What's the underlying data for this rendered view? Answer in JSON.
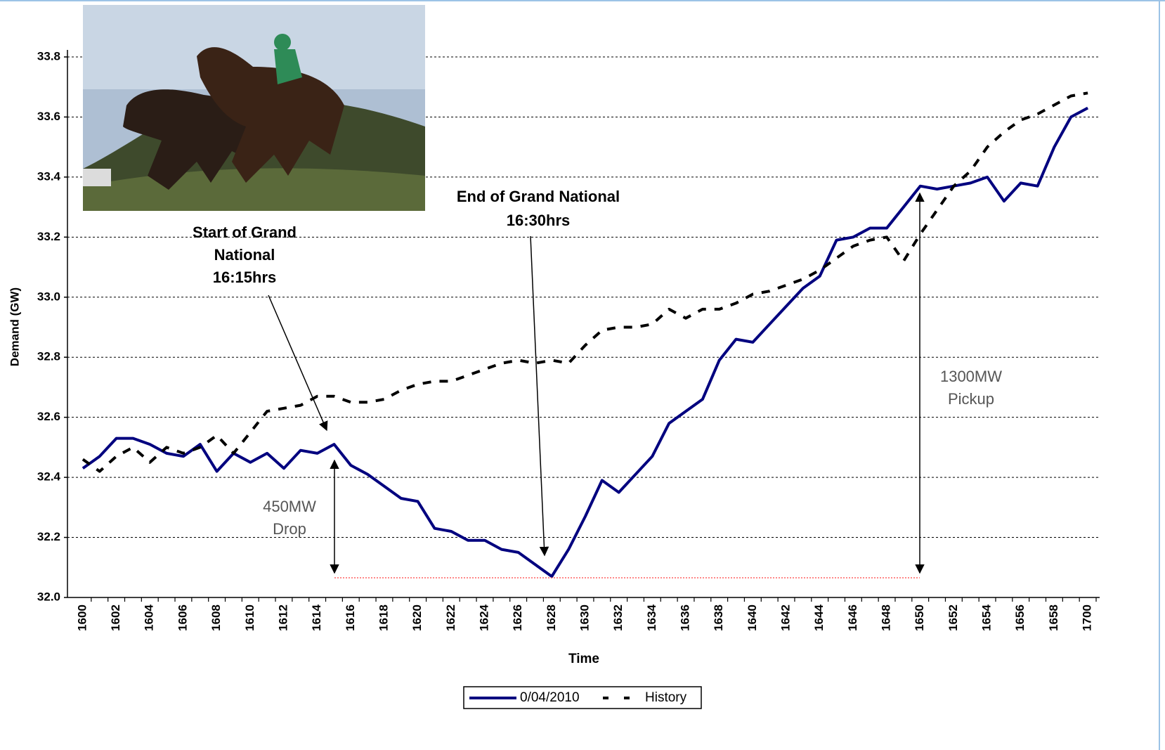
{
  "chart_data": {
    "type": "line",
    "x_label": "Time",
    "y_label": "Demand (GW)",
    "categories": [
      "1600",
      null,
      "1602",
      null,
      "1604",
      null,
      "1606",
      null,
      "1608",
      null,
      "1610",
      null,
      "1612",
      null,
      "1614",
      null,
      "1616",
      null,
      "1618",
      null,
      "1620",
      null,
      "1622",
      null,
      "1624",
      null,
      "1626",
      null,
      "1628",
      null,
      "1630",
      null,
      "1632",
      null,
      "1634",
      null,
      "1636",
      null,
      "1638",
      null,
      "1640",
      null,
      "1642",
      null,
      "1644",
      null,
      "1646",
      null,
      "1648",
      null,
      "1650",
      null,
      "1652",
      null,
      "1654",
      null,
      "1656",
      null,
      "1658",
      null,
      "1700"
    ],
    "series": [
      {
        "name": "0/04/2010",
        "color": "#00007f",
        "dashed": false,
        "values": [
          32.43,
          32.47,
          32.53,
          32.53,
          32.51,
          32.48,
          32.47,
          32.51,
          32.42,
          32.48,
          32.45,
          32.48,
          32.43,
          32.49,
          32.48,
          32.51,
          32.44,
          32.41,
          32.37,
          32.33,
          32.32,
          32.23,
          32.22,
          32.19,
          32.19,
          32.16,
          32.15,
          32.11,
          32.07,
          32.16,
          32.27,
          32.39,
          32.35,
          32.41,
          32.47,
          32.58,
          32.62,
          32.66,
          32.79,
          32.86,
          32.85,
          32.91,
          32.97,
          33.03,
          33.07,
          33.19,
          33.2,
          33.23,
          33.23,
          33.3,
          33.37,
          33.36,
          33.37,
          33.38,
          33.4,
          33.32,
          33.38,
          33.37,
          33.5,
          33.6,
          33.63
        ]
      },
      {
        "name": "History",
        "color": "#000000",
        "dashed": true,
        "values": [
          32.46,
          32.42,
          32.47,
          32.5,
          32.45,
          32.5,
          32.48,
          32.5,
          32.54,
          32.48,
          32.55,
          32.62,
          32.63,
          32.64,
          32.67,
          32.67,
          32.65,
          32.65,
          32.66,
          32.69,
          32.71,
          32.72,
          32.72,
          32.74,
          32.76,
          32.78,
          32.79,
          32.78,
          32.79,
          32.78,
          32.84,
          32.89,
          32.9,
          32.9,
          32.91,
          32.96,
          32.93,
          32.96,
          32.96,
          32.98,
          33.01,
          33.02,
          33.04,
          33.06,
          33.09,
          33.13,
          33.17,
          33.19,
          33.2,
          33.12,
          33.21,
          33.29,
          33.37,
          33.42,
          33.5,
          33.55,
          33.59,
          33.61,
          33.64,
          33.67,
          33.68
        ]
      }
    ],
    "ylim": [
      32,
      33.8
    ],
    "yticks": [
      {
        "value": 32,
        "label": "32.0"
      },
      32.2,
      32.4,
      32.6,
      32.8,
      {
        "value": 33,
        "label": "33.0"
      },
      33.2,
      33.4,
      33.6,
      33.8
    ],
    "grid": true,
    "legend": "bottom",
    "annotations": [
      {
        "lines": [
          "Start of Grand",
          "National",
          "16:15hrs"
        ]
      },
      {
        "lines": [
          "End of Grand National",
          "16:30hrs"
        ]
      },
      {
        "lines": [
          "450MW",
          "Drop"
        ]
      },
      {
        "lines": [
          "1300MW",
          "Pickup"
        ]
      }
    ]
  }
}
